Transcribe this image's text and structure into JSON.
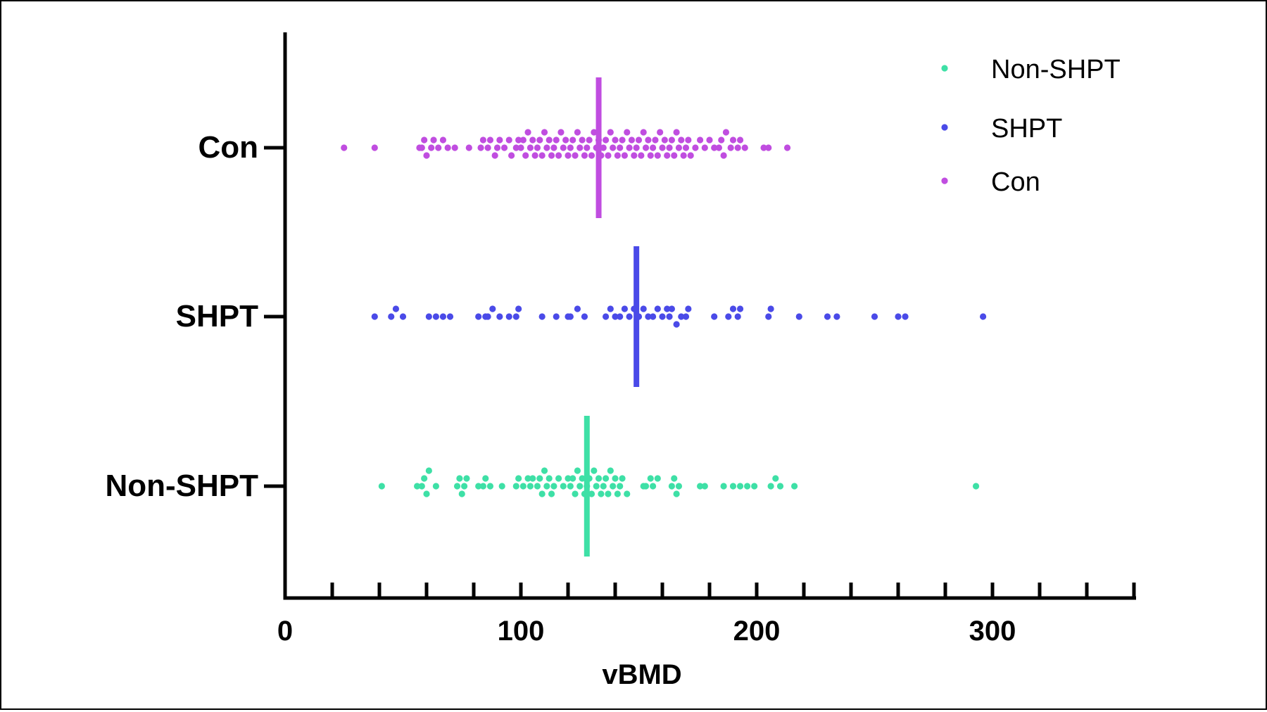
{
  "chart_data": {
    "type": "scatter",
    "subtype": "horizontal-dot-plot-with-mean-line",
    "xlabel": "vBMD",
    "ylabel": "",
    "xlim": [
      0,
      360
    ],
    "x_ticks": [
      0,
      100,
      200,
      300
    ],
    "x_minor_tick_step": 20,
    "grid": false,
    "legend_position": "top-right",
    "categories": [
      "Con",
      "SHPT",
      "Non-SHPT"
    ],
    "series": [
      {
        "name": "Non-SHPT",
        "color": "#3ee0a6",
        "mean": 128,
        "values": [
          41,
          56,
          58,
          59,
          60,
          61,
          64,
          73,
          74,
          75,
          76,
          77,
          82,
          84,
          85,
          87,
          92,
          98,
          99,
          101,
          103,
          104,
          105,
          107,
          108,
          109,
          110,
          111,
          112,
          113,
          114,
          116,
          118,
          120,
          121,
          122,
          123,
          124,
          125,
          126,
          127,
          128,
          129,
          130,
          131,
          132,
          133,
          134,
          135,
          136,
          137,
          138,
          139,
          140,
          141,
          142,
          143,
          145,
          152,
          153,
          155,
          156,
          158,
          164,
          165,
          166,
          167,
          176,
          178,
          186,
          190,
          193,
          196,
          199,
          206,
          208,
          210,
          216,
          293
        ]
      },
      {
        "name": "SHPT",
        "color": "#4a4ae8",
        "mean": 149,
        "values": [
          38,
          45,
          47,
          50,
          61,
          64,
          67,
          70,
          82,
          85,
          86,
          88,
          91,
          95,
          98,
          99,
          109,
          115,
          120,
          121,
          124,
          127,
          136,
          138,
          140,
          142,
          144,
          146,
          148,
          150,
          152,
          154,
          156,
          158,
          160,
          162,
          163,
          164,
          166,
          168,
          170,
          171,
          182,
          188,
          190,
          192,
          193,
          205,
          206,
          218,
          230,
          234,
          250,
          260,
          263,
          296
        ]
      },
      {
        "name": "Con",
        "color": "#c04de0",
        "mean": 133,
        "values": [
          25,
          38,
          57,
          58,
          59,
          60,
          62,
          63,
          65,
          67,
          69,
          72,
          78,
          83,
          84,
          86,
          87,
          89,
          90,
          91,
          93,
          95,
          96,
          98,
          99,
          100,
          101,
          102,
          103,
          104,
          105,
          106,
          107,
          108,
          109,
          110,
          111,
          112,
          113,
          114,
          115,
          116,
          117,
          118,
          119,
          120,
          121,
          122,
          123,
          124,
          125,
          126,
          127,
          128,
          129,
          130,
          131,
          132,
          133,
          134,
          135,
          136,
          137,
          138,
          139,
          140,
          141,
          142,
          143,
          144,
          145,
          146,
          147,
          148,
          149,
          150,
          151,
          152,
          153,
          154,
          155,
          156,
          157,
          158,
          159,
          160,
          161,
          162,
          163,
          164,
          165,
          166,
          167,
          168,
          169,
          170,
          171,
          172,
          174,
          176,
          178,
          180,
          182,
          184,
          185,
          186,
          187,
          189,
          190,
          192,
          193,
          195,
          203,
          205,
          213
        ]
      }
    ]
  }
}
